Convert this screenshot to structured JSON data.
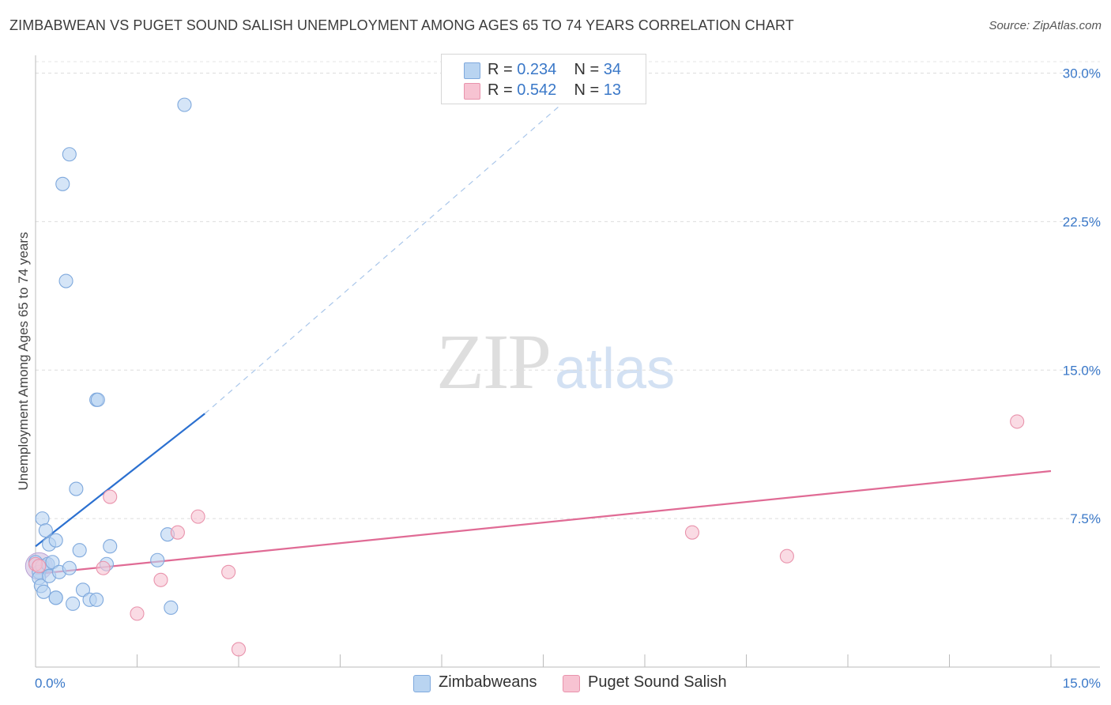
{
  "title": "ZIMBABWEAN VS PUGET SOUND SALISH UNEMPLOYMENT AMONG AGES 65 TO 74 YEARS CORRELATION CHART",
  "source": "Source: ZipAtlas.com",
  "watermark": {
    "zip": "ZIP",
    "atlas": "atlas"
  },
  "legend": {
    "rows": [
      {
        "r_label": "R =",
        "r_value": "0.234",
        "n_label": "N =",
        "n_value": "34",
        "color": "#b9d4f1"
      },
      {
        "r_label": "R =",
        "r_value": "0.542",
        "n_label": "N =",
        "n_value": "13",
        "color": "#f7c3d2"
      }
    ]
  },
  "bottom_legend": [
    "Zimbabweans",
    "Puget Sound Salish"
  ],
  "chart_data": {
    "type": "scatter",
    "title": "ZIMBABWEAN VS PUGET SOUND SALISH UNEMPLOYMENT AMONG AGES 65 TO 74 YEARS CORRELATION CHART",
    "xlabel": "",
    "ylabel": "Unemployment Among Ages 65 to 74 years",
    "xlim": [
      0,
      15
    ],
    "ylim": [
      0,
      30.9
    ],
    "x_tick_labels": [
      "0.0%",
      "15.0%"
    ],
    "y_ticks": [
      7.5,
      15.0,
      22.5,
      30.0
    ],
    "y_tick_labels": [
      "7.5%",
      "15.0%",
      "22.5%",
      "30.0%"
    ],
    "series": [
      {
        "name": "Zimbabweans",
        "color": "#b9d4f1",
        "stroke": "#7fa9dd",
        "trend_color": "#2b70d0",
        "trend": {
          "x0": 0,
          "y0": 6.1,
          "x1": 2.5,
          "y1": 12.8,
          "dash_x1": 8.4,
          "dash_y1": 30.3
        },
        "points": [
          [
            0.0,
            5.3
          ],
          [
            0.05,
            4.8
          ],
          [
            0.05,
            4.5
          ],
          [
            0.08,
            4.1
          ],
          [
            0.1,
            5.1
          ],
          [
            0.1,
            7.5
          ],
          [
            0.12,
            3.8
          ],
          [
            0.15,
            6.9
          ],
          [
            0.18,
            5.2
          ],
          [
            0.2,
            6.2
          ],
          [
            0.2,
            4.6
          ],
          [
            0.25,
            5.3
          ],
          [
            0.3,
            6.4
          ],
          [
            0.3,
            3.5
          ],
          [
            0.3,
            3.5
          ],
          [
            0.35,
            4.8
          ],
          [
            0.4,
            24.4
          ],
          [
            0.45,
            19.5
          ],
          [
            0.5,
            25.9
          ],
          [
            0.5,
            5.0
          ],
          [
            0.55,
            3.2
          ],
          [
            0.6,
            9.0
          ],
          [
            0.65,
            5.9
          ],
          [
            0.7,
            3.9
          ],
          [
            0.8,
            3.4
          ],
          [
            0.9,
            3.4
          ],
          [
            0.9,
            13.5
          ],
          [
            0.92,
            13.5
          ],
          [
            1.05,
            5.2
          ],
          [
            1.1,
            6.1
          ],
          [
            1.8,
            5.4
          ],
          [
            1.95,
            6.7
          ],
          [
            2.0,
            3.0
          ],
          [
            2.2,
            28.4
          ]
        ]
      },
      {
        "name": "Puget Sound Salish",
        "color": "#f7c3d2",
        "stroke": "#e993ac",
        "trend_color": "#e06b95",
        "trend": {
          "x0": 0,
          "y0": 4.7,
          "x1": 15,
          "y1": 9.9
        },
        "points": [
          [
            0.0,
            5.2
          ],
          [
            0.05,
            5.1
          ],
          [
            1.0,
            5.0
          ],
          [
            1.1,
            8.6
          ],
          [
            1.5,
            2.7
          ],
          [
            1.85,
            4.4
          ],
          [
            2.1,
            6.8
          ],
          [
            2.4,
            7.6
          ],
          [
            2.85,
            4.8
          ],
          [
            3.0,
            0.9
          ],
          [
            9.7,
            6.8
          ],
          [
            11.1,
            5.6
          ],
          [
            14.5,
            12.4
          ]
        ]
      }
    ]
  }
}
